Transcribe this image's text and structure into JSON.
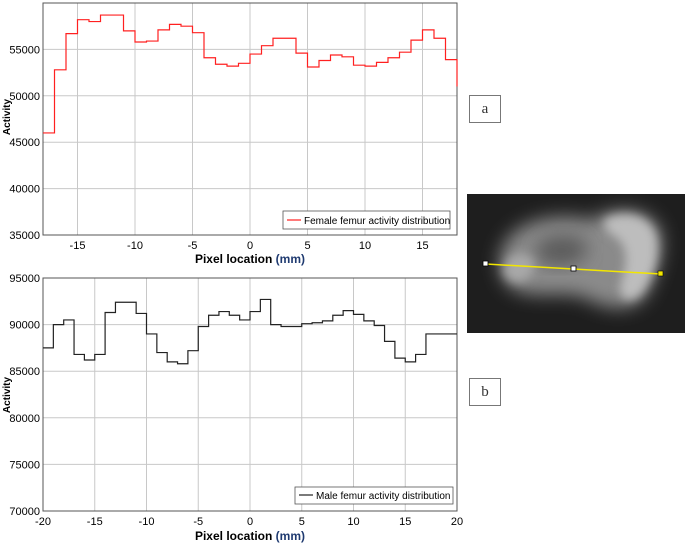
{
  "panel_labels": {
    "a": "a",
    "b": "b"
  },
  "colors": {
    "female_line": "#ff2020",
    "male_line": "#222222",
    "grid": "#c8c8c8",
    "profile_line": "#f2e600"
  },
  "chart_data": [
    {
      "type": "line",
      "xlabel_prefix": "Pixel location ",
      "xlabel_unit": "(mm)",
      "ylabel": "Activity",
      "xlim": [
        -18,
        18
      ],
      "ylim": [
        35000,
        60000
      ],
      "xticks": [
        -15,
        -10,
        -5,
        0,
        5,
        10,
        15
      ],
      "yticks": [
        35000,
        40000,
        45000,
        50000,
        55000
      ],
      "grid": true,
      "legend": "bottom-right",
      "series": [
        {
          "name": "Female femur activity distribution",
          "step": true,
          "x": [
            -18,
            -17,
            -16,
            -15,
            -14,
            -13,
            -12,
            -11,
            -10,
            -9,
            -8,
            -7,
            -6,
            -5,
            -4,
            -3,
            -2,
            -1,
            0,
            1,
            2,
            3,
            4,
            5,
            6,
            7,
            8,
            9,
            10,
            11,
            12,
            13,
            14,
            15,
            16,
            17,
            18
          ],
          "y": [
            46000,
            52800,
            56700,
            58200,
            58000,
            58700,
            58700,
            57000,
            55800,
            55900,
            57100,
            57700,
            57500,
            56800,
            54100,
            53400,
            53200,
            53500,
            54500,
            55400,
            56200,
            56200,
            54600,
            53100,
            53800,
            54400,
            54200,
            53300,
            53200,
            53600,
            54100,
            54700,
            56000,
            57100,
            56200,
            53900,
            51000
          ]
        }
      ]
    },
    {
      "type": "line",
      "xlabel_prefix": "Pixel location ",
      "xlabel_unit": "(mm)",
      "ylabel": "Activity",
      "xlim": [
        -20,
        20
      ],
      "ylim": [
        70000,
        95000
      ],
      "xticks": [
        -20,
        -15,
        -10,
        -5,
        0,
        5,
        10,
        15,
        20
      ],
      "xtick_labels": [
        "-20",
        "-15",
        "-10",
        "-5",
        "0",
        "5",
        "10",
        "15",
        "20"
      ],
      "yticks": [
        70000,
        75000,
        80000,
        85000,
        90000,
        95000
      ],
      "grid": true,
      "legend": "bottom-right",
      "series": [
        {
          "name": "Male femur activity distribution",
          "step": true,
          "x": [
            -20,
            -19,
            -18,
            -17,
            -16,
            -15,
            -14,
            -13,
            -12,
            -11,
            -10,
            -9,
            -8,
            -7,
            -6,
            -5,
            -4,
            -3,
            -2,
            -1,
            0,
            1,
            2,
            3,
            4,
            5,
            6,
            7,
            8,
            9,
            10,
            11,
            12,
            13,
            14,
            15,
            16,
            17,
            18,
            19,
            20
          ],
          "y": [
            87500,
            90000,
            90500,
            86800,
            86200,
            86800,
            91300,
            92400,
            92400,
            91200,
            89000,
            87000,
            86000,
            85800,
            87200,
            89800,
            91000,
            91400,
            91000,
            90500,
            91400,
            92700,
            90000,
            89800,
            89800,
            90100,
            90200,
            90400,
            91000,
            91500,
            91100,
            90400,
            89900,
            88200,
            86400,
            86000,
            86800,
            89000,
            89000,
            89000,
            89000
          ]
        }
      ]
    }
  ]
}
